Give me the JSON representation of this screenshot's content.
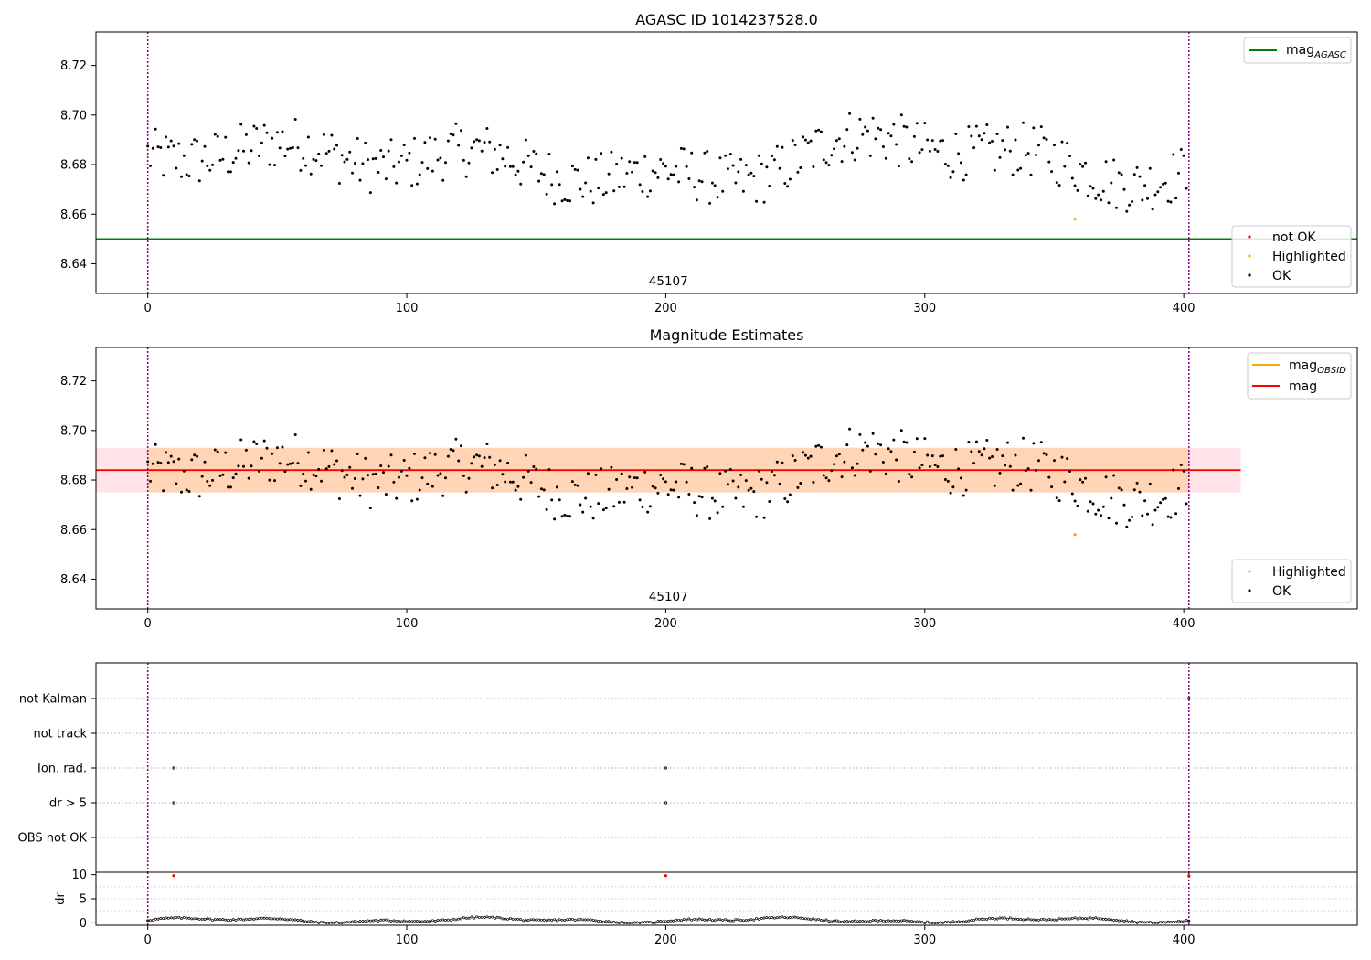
{
  "figure": {
    "title": "AGASC ID 1014237528.0",
    "subtitle": "Magnitude Estimates"
  },
  "chart_data": [
    {
      "panel": "agasc",
      "type": "scatter",
      "title": "AGASC ID 1014237528.0",
      "xlim": [
        -20,
        467
      ],
      "ylim": [
        8.628,
        8.7335
      ],
      "xticks": [
        0,
        100,
        200,
        300,
        400
      ],
      "yticks": [
        8.64,
        8.66,
        8.68,
        8.7,
        8.72
      ],
      "ytick_labels": [
        "8.64",
        "8.66",
        "8.68",
        "8.70",
        "8.72"
      ],
      "obsid_label": "45107",
      "obs_boundaries": [
        0,
        402
      ],
      "series_summary": {
        "n_points": 402,
        "mean": 8.678,
        "range": [
          8.66,
          8.703
        ],
        "highlighted": [
          {
            "x": 358,
            "y": 8.658
          }
        ]
      },
      "hlines": [
        {
          "name": "mag_AGASC",
          "y": 8.65,
          "color": "#008000"
        }
      ],
      "legend_lines": [
        {
          "name": "mag",
          "sub": "AGASC",
          "color": "#008000"
        }
      ],
      "legend_points": [
        {
          "name": "not OK",
          "color": "#ff0000"
        },
        {
          "name": "Highlighted",
          "color": "#ffa500"
        },
        {
          "name": "OK",
          "color": "#000000"
        }
      ],
      "legend_position": [
        "top-right",
        "bottom-right"
      ]
    },
    {
      "panel": "estimates",
      "type": "scatter",
      "title": "Magnitude Estimates",
      "xlim": [
        -20,
        467
      ],
      "ylim": [
        8.628,
        8.7335
      ],
      "xticks": [
        0,
        100,
        200,
        300,
        400
      ],
      "yticks": [
        8.64,
        8.66,
        8.68,
        8.7,
        8.72
      ],
      "ytick_labels": [
        "8.64",
        "8.66",
        "8.68",
        "8.70",
        "8.72"
      ],
      "obsid_label": "45107",
      "mag_line": {
        "y": 8.684,
        "color": "#ff0000",
        "x_range": [
          0,
          422
        ]
      },
      "band_obsid": {
        "y_range": [
          8.675,
          8.693
        ],
        "x_range": [
          0,
          402
        ],
        "color": "#ffa500"
      },
      "band_overall": {
        "y_range": [
          8.675,
          8.693
        ],
        "x_range": [
          -20,
          422
        ],
        "color": "#ffc0cb"
      },
      "legend_lines": [
        {
          "name": "mag",
          "sub": "OBSID",
          "color": "#ffa500"
        },
        {
          "name": "mag",
          "sub": "",
          "color": "#ff0000"
        }
      ],
      "legend_points": [
        {
          "name": "Highlighted",
          "color": "#ffa500"
        },
        {
          "name": "OK",
          "color": "#000000"
        }
      ],
      "legend_position": [
        "top-right",
        "bottom-right"
      ]
    },
    {
      "panel": "flags",
      "type": "scatter",
      "xlim": [
        -20,
        467
      ],
      "categories": [
        "not Kalman",
        "not track",
        "Ion. rad.",
        "dr > 5",
        "OBS not OK"
      ],
      "flag_points": [
        {
          "category": "Ion. rad.",
          "x": [
            10,
            200
          ]
        },
        {
          "category": "dr > 5",
          "x": [
            10,
            200
          ]
        },
        {
          "category": "not Kalman",
          "x": [
            402
          ]
        }
      ],
      "obs_boundaries": [
        0,
        402
      ]
    },
    {
      "panel": "dr",
      "type": "scatter",
      "ylabel": "dr",
      "xlim": [
        -20,
        467
      ],
      "ylim": [
        -0.5,
        10.5
      ],
      "xticks": [
        0,
        100,
        200,
        300,
        400
      ],
      "xtick_labels": [
        "0",
        "100",
        "200",
        "300",
        "400"
      ],
      "yticks": [
        0,
        5,
        10
      ],
      "ytick_labels": [
        "0",
        "5",
        "10"
      ],
      "dr_outliers": [
        {
          "x": 10,
          "y": 9.8
        },
        {
          "x": 200,
          "y": 9.8
        },
        {
          "x": 402,
          "y": 9.8
        }
      ],
      "dr_typical_range": [
        0.0,
        1.3
      ]
    }
  ]
}
